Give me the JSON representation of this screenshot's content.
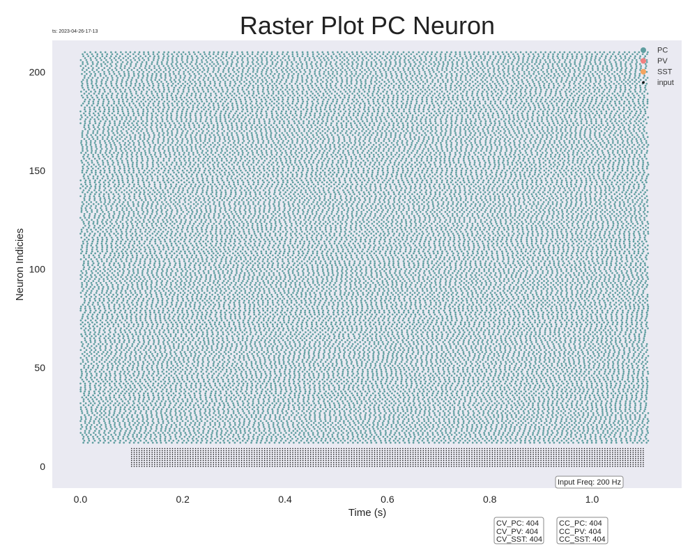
{
  "chart_data": {
    "type": "scatter",
    "title": "Raster Plot PC Neuron",
    "timestamp": "ts: 2023-04-26-17-13",
    "xlabel": "Time (s)",
    "ylabel": "Neuron Indicies",
    "xlim": [
      -0.055,
      1.175
    ],
    "ylim": [
      -11,
      216
    ],
    "xticks": [
      0.0,
      0.2,
      0.4,
      0.6,
      0.8,
      1.0
    ],
    "xtick_labels": [
      "0.0",
      "0.2",
      "0.4",
      "0.6",
      "0.8",
      "1.0"
    ],
    "yticks": [
      0,
      50,
      100,
      150,
      200
    ],
    "ytick_labels": [
      "0",
      "50",
      "100",
      "150",
      "200"
    ],
    "grid": false,
    "background": "#eaeaf2",
    "legend_position": "top-right",
    "series": [
      {
        "name": "PC",
        "color": "#5f9ea0",
        "neuron_range": [
          12,
          210
        ],
        "time_range": [
          0.0,
          1.11
        ],
        "approx_rate_hz": 105
      },
      {
        "name": "PV",
        "color": "#f08080",
        "neuron_range": [],
        "time_range": []
      },
      {
        "name": "SST",
        "color": "#f4a460",
        "neuron_range": [],
        "time_range": []
      },
      {
        "name": "input",
        "color": "#000000",
        "neuron_range": [
          0,
          9
        ],
        "time_range": [
          0.1,
          1.1
        ],
        "rate_hz": 200
      }
    ],
    "annotations": {
      "input_freq": "Input Freq: 200 Hz",
      "cv_lines": [
        "CV_PC: 404",
        "CV_PV: 404",
        "CV_SST: 404"
      ],
      "cc_lines": [
        "CC_PC: 404",
        "CC_PV: 404",
        "CC_SST: 404"
      ]
    }
  }
}
